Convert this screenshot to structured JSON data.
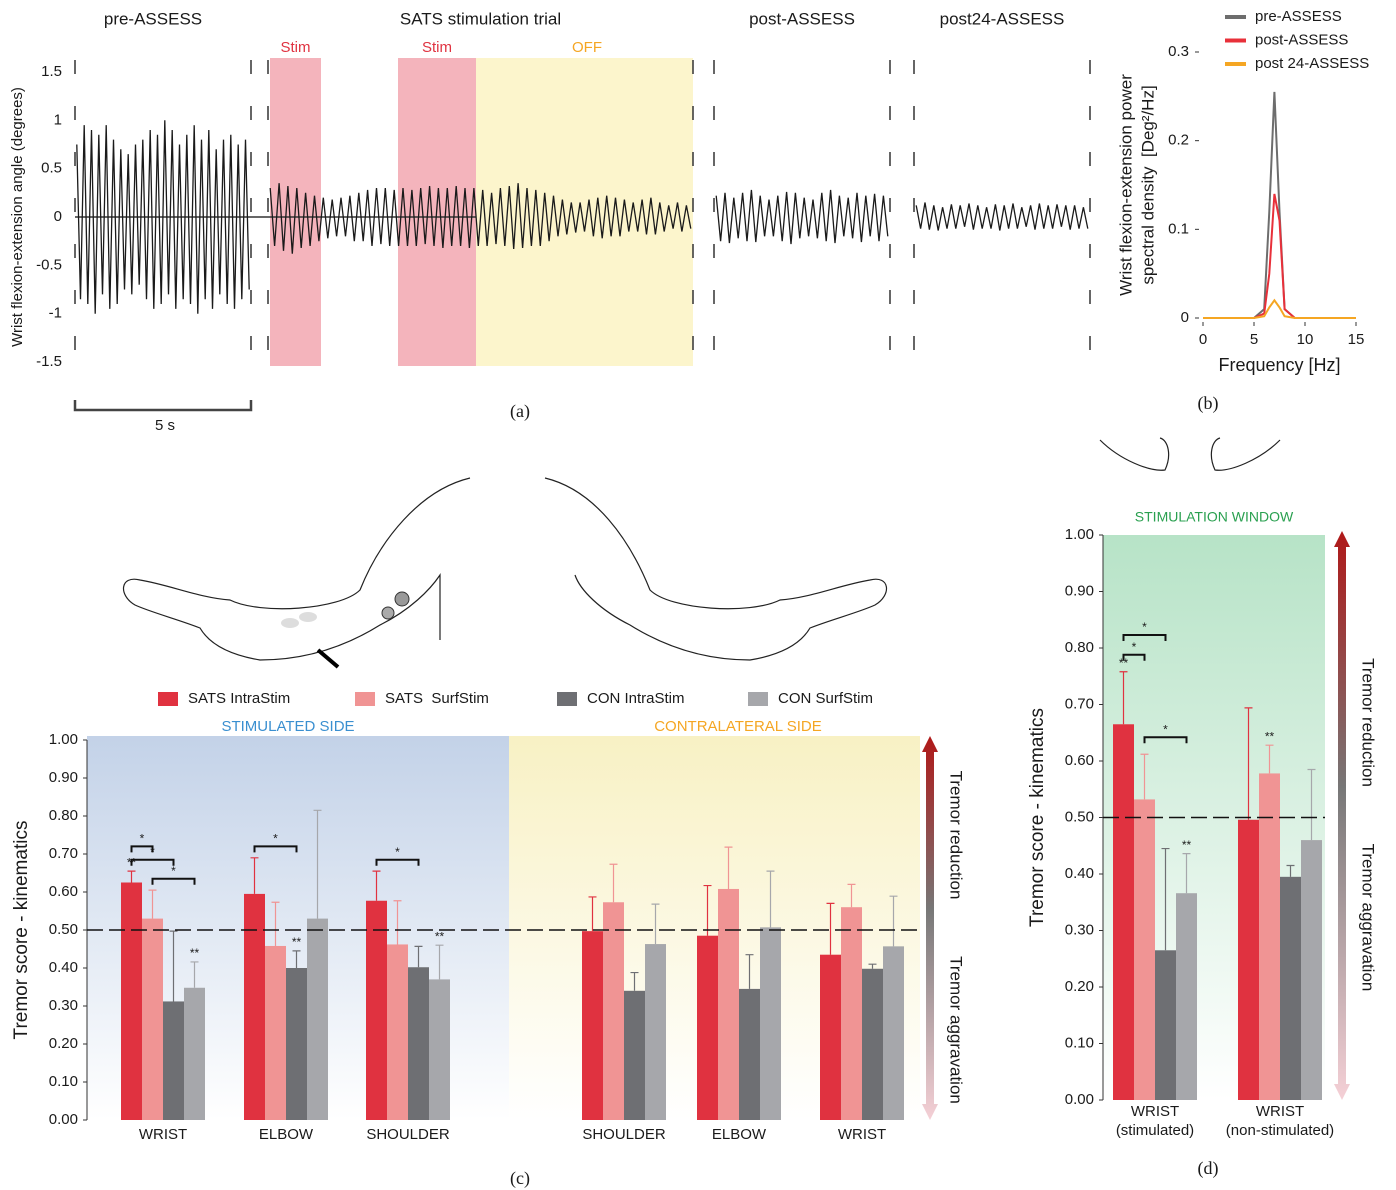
{
  "chart_data": [
    {
      "type": "trace",
      "panel": "(a)",
      "ylabel": "Wrist flexion-extension angle (degrees)",
      "ylim": [
        -1.5,
        1.5
      ],
      "yticks": [
        1.5,
        1,
        0.5,
        0,
        -0.5,
        -1,
        -1.5
      ],
      "scale_bar": "5 s",
      "color": "#1a1a1a",
      "segments": [
        {
          "name": "pre-ASSESS",
          "values": [
            0.75,
            -0.85,
            0.95,
            -0.9,
            0.9,
            -1.0,
            0.85,
            -0.8,
            0.95,
            -0.95,
            0.8,
            -0.9,
            0.7,
            -0.75,
            0.65,
            -0.8,
            0.75,
            -0.7,
            0.8,
            -0.85,
            0.9,
            -0.95,
            0.85,
            -0.9,
            1.0,
            -0.8,
            0.9,
            -0.95,
            0.75,
            -0.85,
            0.85,
            -0.9,
            0.95,
            -1.0,
            0.8,
            -0.85,
            0.9,
            -0.95,
            0.7,
            -0.8,
            0.8,
            -0.9,
            0.85,
            -0.95,
            0.75,
            -0.85,
            0.8,
            -0.75
          ]
        },
        {
          "name": "SATS stimulation trial",
          "windows": [
            "Stim",
            "Stim",
            "OFF"
          ],
          "values": [
            0.3,
            -0.3,
            0.35,
            -0.35,
            0.32,
            -0.38,
            0.3,
            -0.32,
            0.25,
            -0.3,
            0.22,
            -0.25,
            0.2,
            -0.22,
            0.18,
            -0.2,
            0.2,
            -0.2,
            0.22,
            -0.25,
            0.25,
            -0.25,
            0.28,
            -0.3,
            0.3,
            -0.28,
            0.3,
            -0.3,
            0.28,
            -0.3,
            0.3,
            -0.3,
            0.28,
            -0.3,
            0.3,
            -0.28,
            0.32,
            -0.3,
            0.3,
            -0.32,
            0.3,
            -0.3,
            0.32,
            -0.3,
            0.3,
            -0.32,
            0.3,
            -0.3,
            0.28,
            -0.3,
            0.25,
            -0.28,
            0.3,
            -0.3,
            0.32,
            -0.33,
            0.35,
            -0.32,
            0.3,
            -0.3,
            0.28,
            -0.3,
            0.25,
            -0.25,
            0.22,
            -0.2,
            0.18,
            -0.18,
            0.15,
            -0.16,
            0.15,
            -0.15,
            0.18,
            -0.2,
            0.2,
            -0.22,
            0.22,
            -0.2,
            0.2,
            -0.2,
            0.18,
            -0.15,
            0.15,
            -0.15,
            0.18,
            -0.18,
            0.2,
            -0.18,
            0.15,
            -0.15,
            0.12,
            -0.12,
            0.15,
            -0.15,
            0.12,
            -0.12
          ]
        },
        {
          "name": "post-ASSESS",
          "values": [
            0.22,
            -0.25,
            0.25,
            -0.27,
            0.2,
            -0.22,
            0.25,
            -0.25,
            0.28,
            -0.26,
            0.22,
            -0.2,
            0.18,
            -0.2,
            0.22,
            -0.25,
            0.26,
            -0.28,
            0.25,
            -0.22,
            0.2,
            -0.2,
            0.18,
            -0.22,
            0.25,
            -0.25,
            0.28,
            -0.27,
            0.22,
            -0.2,
            0.2,
            -0.22,
            0.25,
            -0.26,
            0.22,
            -0.2,
            0.24,
            -0.25,
            0.22,
            -0.2
          ]
        },
        {
          "name": "post24-ASSESS",
          "values": [
            0.12,
            -0.12,
            0.15,
            -0.13,
            0.12,
            -0.14,
            0.1,
            -0.12,
            0.13,
            -0.12,
            0.12,
            -0.1,
            0.14,
            -0.13,
            0.12,
            -0.12,
            0.1,
            -0.12,
            0.13,
            -0.14,
            0.12,
            -0.12,
            0.14,
            -0.12,
            0.1,
            -0.1,
            0.12,
            -0.13,
            0.14,
            -0.12,
            0.12,
            -0.12,
            0.13,
            -0.1,
            0.12,
            -0.13,
            0.12,
            -0.12,
            0.1,
            -0.12
          ]
        }
      ]
    },
    {
      "type": "line",
      "panel": "(b)",
      "xlabel": "Frequency [Hz]",
      "ylabel": [
        "Wrist flexion-extension power",
        "spectral density  [Deg²/Hz]"
      ],
      "x": [
        0,
        5,
        6,
        6.5,
        7,
        7.5,
        8,
        9,
        15
      ],
      "xlim": [
        0,
        15
      ],
      "xticks": [
        0,
        5,
        10,
        15
      ],
      "ylim": [
        0,
        0.3
      ],
      "yticks": [
        0,
        0.1,
        0.2,
        0.3
      ],
      "series": [
        {
          "name": "pre-ASSESS",
          "color": "#6d6d6d",
          "values": [
            0,
            0,
            0.01,
            0.12,
            0.255,
            0.12,
            0.01,
            0,
            0
          ]
        },
        {
          "name": "post-ASSESS",
          "color": "#e8303a",
          "values": [
            0,
            0,
            0.005,
            0.05,
            0.14,
            0.11,
            0.01,
            0,
            0
          ]
        },
        {
          "name": "post 24-ASSESS",
          "color": "#f5a623",
          "values": [
            0,
            0,
            0.002,
            0.012,
            0.02,
            0.012,
            0.002,
            0,
            0
          ]
        }
      ]
    },
    {
      "type": "bar",
      "panel": "(c)",
      "regions": [
        "STIMULATED SIDE",
        "CONTRALATERAL SIDE"
      ],
      "ylabel": "Tremor score - kinematics",
      "arrow_labels": [
        "Tremor reduction",
        "Tremor aggravation"
      ],
      "reference_line": 0.5,
      "categories": [
        "WRIST",
        "ELBOW",
        "SHOULDER",
        "SHOULDER",
        "ELBOW",
        "WRIST"
      ],
      "ylim": [
        0,
        1
      ],
      "yticks": [
        {
          "value": 0,
          "label": "0.00"
        },
        {
          "value": 0.1,
          "label": "0.10"
        },
        {
          "value": 0.2,
          "label": "0.20"
        },
        {
          "value": 0.3,
          "label": "0.30"
        },
        {
          "value": 0.4,
          "label": "0.40"
        },
        {
          "value": 0.5,
          "label": "0.50"
        },
        {
          "value": 0.6,
          "label": "0.60"
        },
        {
          "value": 0.7,
          "label": "0.70"
        },
        {
          "value": 0.8,
          "label": "0.80"
        },
        {
          "value": 0.9,
          "label": "0.90"
        },
        {
          "value": 1,
          "label": "1.00"
        }
      ],
      "series": [
        {
          "name": "SATS IntraStim",
          "color": "#e03240",
          "values": [
            0.625,
            0.595,
            0.577,
            0.497,
            0.485,
            0.435
          ],
          "errors": [
            0.03,
            0.095,
            0.078,
            0.09,
            0.132,
            0.135
          ],
          "stars": [
            "**",
            null,
            null,
            null,
            null,
            null
          ]
        },
        {
          "name": "SATS  SurfStim",
          "color": "#f09494",
          "values": [
            0.53,
            0.458,
            0.462,
            0.573,
            0.608,
            0.56
          ],
          "errors": [
            0.075,
            0.115,
            0.115,
            0.1,
            0.11,
            0.06
          ],
          "stars": [
            null,
            null,
            null,
            null,
            null,
            null
          ]
        },
        {
          "name": "CON IntraStim",
          "color": "#6e6f73",
          "values": [
            0.312,
            0.4,
            0.402,
            0.34,
            0.345,
            0.398
          ],
          "errors": [
            0.185,
            0.045,
            0.055,
            0.048,
            0.09,
            0.012
          ],
          "stars": [
            null,
            "**",
            null,
            null,
            null,
            null
          ]
        },
        {
          "name": "CON SurfStim",
          "color": "#a6a7ab",
          "values": [
            0.348,
            0.53,
            0.37,
            0.463,
            0.507,
            0.457
          ],
          "errors": [
            0.068,
            0.285,
            0.09,
            0.105,
            0.148,
            0.132
          ],
          "stars": [
            "**",
            null,
            "**",
            null,
            null,
            null
          ]
        }
      ],
      "brackets": [
        {
          "label": "*",
          "category": 0,
          "series": [
            0,
            1
          ]
        },
        {
          "label": "*",
          "category": 0,
          "series": [
            0,
            2
          ]
        },
        {
          "label": "*",
          "category": 0,
          "series": [
            1,
            3
          ]
        },
        {
          "label": "*",
          "category": 1,
          "series": [
            0,
            2
          ]
        },
        {
          "label": "*",
          "category": 2,
          "series": [
            0,
            2
          ]
        }
      ]
    },
    {
      "type": "bar",
      "panel": "(d)",
      "title": "STIMULATION WINDOW",
      "ylabel": "Tremor score - kinematics",
      "arrow_labels": [
        "Tremor reduction",
        "Tremor aggravation"
      ],
      "reference_line": 0.5,
      "categories": [
        [
          "WRIST",
          "(stimulated)"
        ],
        [
          "WRIST",
          "(non-stimulated)"
        ]
      ],
      "ylim": [
        0,
        1
      ],
      "yticks": [
        {
          "value": 0,
          "label": "0.00"
        },
        {
          "value": 0.1,
          "label": "0.10"
        },
        {
          "value": 0.2,
          "label": "0.20"
        },
        {
          "value": 0.3,
          "label": "0.30"
        },
        {
          "value": 0.4,
          "label": "0.40"
        },
        {
          "value": 0.5,
          "label": "0.50"
        },
        {
          "value": 0.6,
          "label": "0.60"
        },
        {
          "value": 0.7,
          "label": "0.70"
        },
        {
          "value": 0.8,
          "label": "0.80"
        },
        {
          "value": 0.9,
          "label": "0.90"
        },
        {
          "value": 1,
          "label": "1.00"
        }
      ],
      "series": [
        {
          "color": "#e03240",
          "values": [
            0.665,
            0.496
          ],
          "errors": [
            0.093,
            0.198
          ],
          "stars": [
            "**",
            null
          ]
        },
        {
          "color": "#f09494",
          "values": [
            0.532,
            0.578
          ],
          "errors": [
            0.08,
            0.05
          ],
          "stars": [
            null,
            "**"
          ]
        },
        {
          "color": "#6e6f73",
          "values": [
            0.265,
            0.395
          ],
          "errors": [
            0.18,
            0.02
          ],
          "stars": [
            null,
            null
          ]
        },
        {
          "color": "#a6a7ab",
          "values": [
            0.366,
            0.46
          ],
          "errors": [
            0.07,
            0.125
          ],
          "stars": [
            "**",
            null
          ]
        }
      ],
      "brackets": [
        {
          "label": "*",
          "category": 0,
          "series": [
            0,
            2
          ]
        },
        {
          "label": "*",
          "category": 0,
          "series": [
            0,
            1
          ]
        },
        {
          "label": "*",
          "category": 0,
          "series": [
            1,
            3
          ]
        }
      ]
    }
  ]
}
